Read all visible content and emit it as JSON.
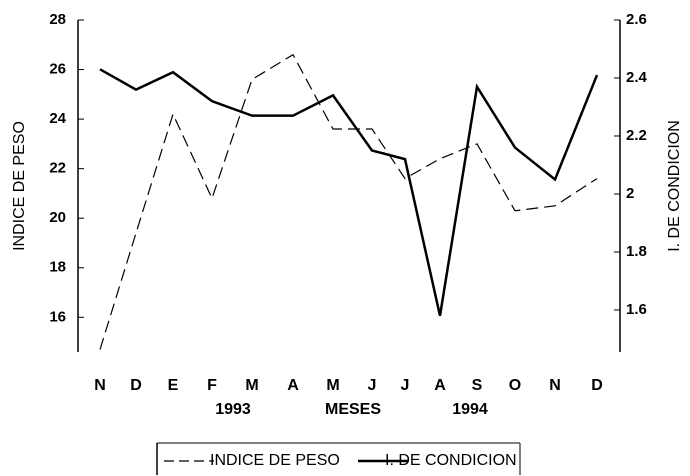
{
  "chart_data": {
    "type": "line",
    "categories": [
      "N",
      "D",
      "E",
      "F",
      "M",
      "A",
      "M",
      "J",
      "J",
      "A",
      "S",
      "O",
      "N",
      "D"
    ],
    "sub_labels": [
      "1993",
      "MESES",
      "1994"
    ],
    "ylabel": "INDICE DE PESO",
    "y2label": "I. DE CONDICION",
    "ylim": [
      14.6,
      28
    ],
    "yticks": [
      16,
      18,
      20,
      22,
      24,
      26,
      28
    ],
    "y2lim": [
      1.455,
      2.6
    ],
    "y2ticks": [
      1.6,
      1.8,
      2,
      2.2,
      2.4,
      2.6
    ],
    "legend": "bottom",
    "series": [
      {
        "name": "INDICE DE PESO",
        "color": "#000000",
        "style": "dashed",
        "values": [
          14.7,
          19.4,
          24.2,
          20.8,
          25.6,
          26.6,
          23.6,
          23.6,
          21.6,
          22.4,
          23.0,
          20.3,
          20.5,
          21.6
        ]
      },
      {
        "name": "I. DE CONDICION",
        "color": "#000000",
        "style": "solid",
        "axis": "y2",
        "values": [
          2.43,
          2.36,
          2.42,
          2.32,
          2.27,
          2.27,
          2.34,
          2.15,
          2.12,
          1.58,
          2.37,
          2.16,
          2.05,
          2.41
        ]
      }
    ]
  }
}
